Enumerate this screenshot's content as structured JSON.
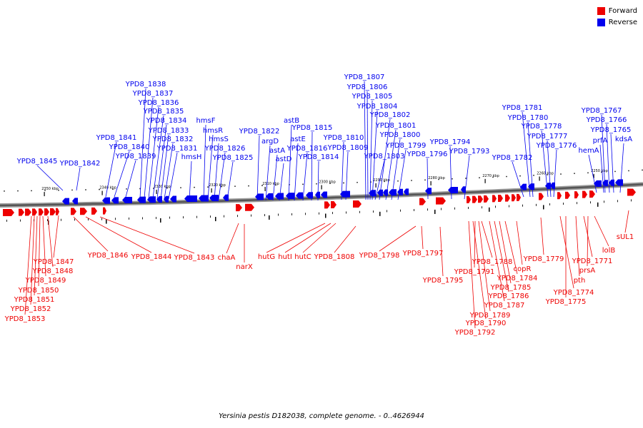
{
  "caption": "Yersinia pestis D182038, complete genome. - 0..4626944",
  "legend": [
    {
      "label": "Forward",
      "color": "#ee0000"
    },
    {
      "label": "Reverse",
      "color": "#0000ee"
    }
  ],
  "colors": {
    "forward": "#ee0000",
    "reverse": "#0000ee",
    "backbone": "#555555"
  },
  "ruler_labels": [
    "2350 kbp",
    "2340 kbp",
    "2330 kbp",
    "2320 kbp",
    "2310 kbp",
    "2300 kbp",
    "2290 kbp",
    "2280 kbp",
    "2270 kbp",
    "2260 kbp",
    "2250 kbp"
  ],
  "reverse_genes": [
    "YPD8_1845",
    "YPD8_1842",
    "YPD8_1841",
    "YPD8_1840",
    "YPD8_1839",
    "YPD8_1838",
    "YPD8_1837",
    "YPD8_1836",
    "YPD8_1835",
    "YPD8_1834",
    "YPD8_1833",
    "YPD8_1832",
    "YPD8_1831",
    "hmsH",
    "hmsF",
    "hmsR",
    "hmsS",
    "YPD8_1826",
    "YPD8_1825",
    "YPD8_1822",
    "argD",
    "astA",
    "astD",
    "astB",
    "astE",
    "YPD8_1816",
    "YPD8_1815",
    "YPD8_1814",
    "YPD8_1810",
    "YPD8_1809",
    "YPD8_1807",
    "YPD8_1806",
    "YPD8_1805",
    "YPD8_1804",
    "YPD8_1803",
    "YPD8_1802",
    "YPD8_1801",
    "YPD8_1800",
    "YPD8_1799",
    "YPD8_1796",
    "YPD8_1794",
    "YPD8_1793",
    "YPD8_1782",
    "YPD8_1781",
    "YPD8_1780",
    "YPD8_1778",
    "YPD8_1777",
    "YPD8_1776",
    "hemA",
    "YPD8_1767",
    "YPD8_1766",
    "YPD8_1765",
    "prfA",
    "kdsA"
  ],
  "forward_genes": [
    "YPD8_1847",
    "YPD8_1846",
    "YPD8_1844",
    "YPD8_1843",
    "chaA",
    "narX",
    "hutG",
    "hutI",
    "hutC",
    "YPD8_1808",
    "YPD8_1798",
    "YPD8_1797",
    "YPD8_1795",
    "YPD8_1848",
    "YPD8_1849",
    "YPD8_1850",
    "YPD8_1851",
    "YPD8_1852",
    "YPD8_1853",
    "YPD8_1788",
    "YPD8_1791",
    "YPD8_1789",
    "YPD8_1790",
    "YPD8_1792",
    "YPD8_1784",
    "YPD8_1785",
    "YPD8_1786",
    "YPD8_1787",
    "copR",
    "YPD8_1779",
    "YPD8_1771",
    "YPD8_1774",
    "YPD8_1775",
    "pth",
    "prsA",
    "lolB",
    "sUL1"
  ]
}
